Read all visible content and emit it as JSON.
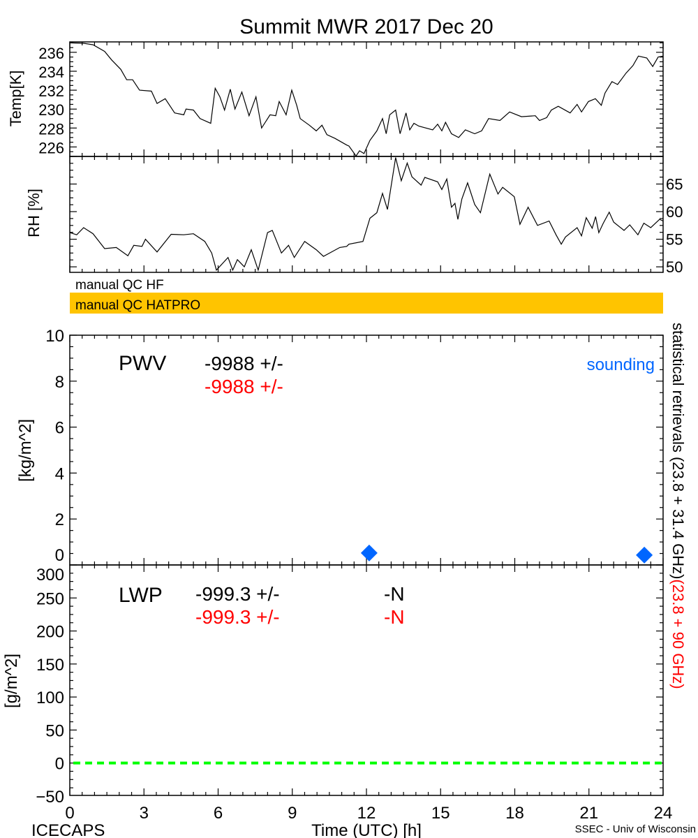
{
  "title": "Summit MWR 2017 Dec 20",
  "footer": {
    "left": "ICECAPS",
    "center": "Time (UTC) [h]",
    "right": "SSEC - Univ of Wisconsin"
  },
  "right_label": {
    "black": "statistical retrievals (23.8 + 31.4 GHz)",
    "red": "(23.8 + 90 GHz)"
  },
  "qc": {
    "hf_label": "manual QC HF",
    "hatpro_label": "manual QC HATPRO",
    "hatpro_color": "#FFC400"
  },
  "colors": {
    "black": "#000000",
    "red": "#FF0000",
    "sounding": "#0066FF",
    "zero_line": "#00FF00",
    "qc_bar": "#FFC400"
  },
  "chart_data": [
    {
      "id": "temp",
      "type": "line",
      "ylabel": "Temp[K]",
      "xlim": [
        0,
        24
      ],
      "ylim": [
        225,
        237.1
      ],
      "yticks": [
        226,
        228,
        230,
        232,
        234,
        236
      ],
      "ytick_side": "left",
      "x": [
        0,
        0.56,
        0.94,
        1.41,
        1.69,
        2.06,
        2.3,
        2.54,
        2.82,
        3.3,
        3.53,
        3.86,
        4.24,
        4.61,
        4.7,
        5.0,
        5.27,
        5.7,
        5.88,
        6.07,
        6.26,
        6.49,
        6.68,
        6.96,
        7.25,
        7.53,
        7.76,
        8.1,
        8.33,
        8.47,
        8.75,
        8.98,
        9.18,
        9.32,
        9.69,
        9.97,
        10.2,
        10.4,
        10.73,
        11.2,
        11.29,
        11.58,
        11.72,
        11.9,
        12.14,
        12.42,
        12.65,
        12.8,
        12.94,
        13.18,
        13.36,
        13.6,
        13.75,
        13.92,
        14.12,
        14.68,
        14.88,
        15.05,
        15.2,
        15.44,
        15.73,
        16.0,
        16.38,
        16.66,
        16.94,
        17.4,
        17.79,
        18.27,
        18.83,
        19.0,
        19.29,
        19.48,
        19.76,
        20.24,
        20.52,
        20.7,
        20.98,
        21.26,
        21.5,
        21.65,
        21.93,
        22.16,
        22.5,
        22.78,
        23.0,
        23.34,
        23.58,
        23.8,
        24
      ],
      "y": [
        237.0,
        236.95,
        236.8,
        236.1,
        235.2,
        234.2,
        233.1,
        233.1,
        232.0,
        231.9,
        230.6,
        231.1,
        229.6,
        229.4,
        230.0,
        229.9,
        229.0,
        228.5,
        232.2,
        231.3,
        229.9,
        232.1,
        230.0,
        231.8,
        229.3,
        231.3,
        228.0,
        229.4,
        229.3,
        230.8,
        229.4,
        232.0,
        230.4,
        229.0,
        228.3,
        227.7,
        228.3,
        227.3,
        226.9,
        226.2,
        226.1,
        225.05,
        225.6,
        225.3,
        226.7,
        227.7,
        229.0,
        227.4,
        229.4,
        229.9,
        227.4,
        229.6,
        227.8,
        228.5,
        228.2,
        227.8,
        228.4,
        227.7,
        228.6,
        227.4,
        227.0,
        227.8,
        227.4,
        227.7,
        229.0,
        228.8,
        229.7,
        229.2,
        229.3,
        228.8,
        229.1,
        229.9,
        230.3,
        229.6,
        230.5,
        229.7,
        230.8,
        231.1,
        230.4,
        231.7,
        232.9,
        232.6,
        233.8,
        234.6,
        235.6,
        235.4,
        234.5,
        235.5,
        235.6
      ]
    },
    {
      "id": "rh",
      "type": "line",
      "ylabel": "RH [%]",
      "xlim": [
        0,
        24
      ],
      "ylim": [
        49,
        70
      ],
      "yticks": [
        50,
        55,
        60,
        65
      ],
      "ytick_side": "right",
      "x": [
        0,
        0.28,
        0.56,
        0.94,
        1.41,
        1.88,
        2.35,
        2.59,
        2.92,
        3.06,
        3.53,
        4.1,
        4.61,
        5.0,
        5.46,
        5.74,
        5.93,
        6.4,
        6.59,
        6.78,
        7.06,
        7.34,
        7.62,
        8.0,
        8.19,
        8.56,
        8.85,
        9.08,
        9.5,
        9.97,
        10.26,
        10.92,
        11.2,
        11.29,
        11.86,
        12.14,
        12.42,
        12.65,
        12.85,
        13.18,
        13.41,
        13.65,
        13.84,
        14.21,
        14.36,
        14.88,
        15.05,
        15.25,
        15.44,
        15.58,
        15.7,
        15.86,
        16.09,
        16.38,
        16.61,
        16.99,
        17.32,
        17.51,
        17.98,
        18.21,
        18.54,
        18.92,
        19.39,
        19.67,
        19.88,
        20.05,
        20.52,
        20.7,
        20.89,
        21.13,
        21.27,
        21.4,
        21.58,
        21.82,
        22.0,
        22.42,
        22.65,
        22.98,
        23.22,
        23.5,
        23.86,
        24
      ],
      "y": [
        56.2,
        55.8,
        57.1,
        56.0,
        53.3,
        53.5,
        52.0,
        53.9,
        53.7,
        55.0,
        52.7,
        55.9,
        55.8,
        56.0,
        54.6,
        52.5,
        49.4,
        51.7,
        49.4,
        51.3,
        50.0,
        53.1,
        49.4,
        56.2,
        56.6,
        52.5,
        53.9,
        51.7,
        54.6,
        53.1,
        51.9,
        53.5,
        53.7,
        54.1,
        54.6,
        58.8,
        59.8,
        63.3,
        60.4,
        69.8,
        65.6,
        68.8,
        66.3,
        64.8,
        66.2,
        65.4,
        64.0,
        65.9,
        60.8,
        61.5,
        58.6,
        62.3,
        65.2,
        61.3,
        59.8,
        66.8,
        63.2,
        64.4,
        62.7,
        57.7,
        60.8,
        57.5,
        58.3,
        55.8,
        54.1,
        55.4,
        57.1,
        55.6,
        58.9,
        57.0,
        59.1,
        56.2,
        57.9,
        59.9,
        58.1,
        56.6,
        57.6,
        55.8,
        57.9,
        57.1,
        58.6,
        58.3
      ]
    },
    {
      "id": "pwv",
      "type": "scatter",
      "ylabel": "[kg/m^2]",
      "xlim": [
        0,
        24
      ],
      "ylim": [
        0,
        10
      ],
      "yticks": [
        0,
        2,
        4,
        6,
        8,
        10
      ],
      "ytick_side": "left",
      "label": "PWV",
      "value_black": "-9988 +/-",
      "value_red": "-9988 +/-",
      "legend": "sounding",
      "legend_placement": "top-right",
      "points": [
        {
          "x": 12.11,
          "y": 0.52
        },
        {
          "x": 23.24,
          "y": 0.43
        }
      ],
      "marker": "diamond"
    },
    {
      "id": "lwp",
      "type": "line",
      "ylabel": "[g/m^2]",
      "xlim": [
        0,
        24
      ],
      "ylim": [
        -49,
        300
      ],
      "yticks": [
        -50,
        0,
        50,
        100,
        150,
        200,
        250,
        300
      ],
      "ytick_side": "left",
      "label": "LWP",
      "value_black": "-999.3 +/-",
      "value_red": "-999.3 +/-",
      "n_black": "-N",
      "n_red": "-N",
      "zero_line": {
        "y": 0,
        "style": "dashed"
      },
      "xticks": [
        0,
        3,
        6,
        9,
        12,
        15,
        18,
        21,
        24
      ],
      "xlabel": "Time (UTC) [h]"
    }
  ]
}
